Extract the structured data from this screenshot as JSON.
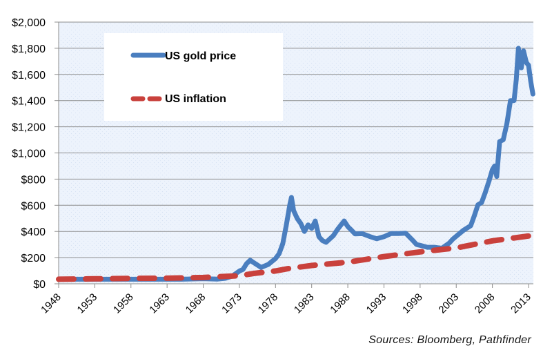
{
  "chart_data": {
    "type": "line",
    "title": "",
    "xlabel": "",
    "ylabel": "",
    "ylim": [
      0,
      2000
    ],
    "xlim": [
      1948,
      2014
    ],
    "y_ticks": [
      "$0",
      "$200",
      "$400",
      "$600",
      "$800",
      "$1,000",
      "$1,200",
      "$1,400",
      "$1,600",
      "$1,800",
      "$2,000"
    ],
    "y_tick_values": [
      0,
      200,
      400,
      600,
      800,
      1000,
      1200,
      1400,
      1600,
      1800,
      2000
    ],
    "x_ticks": [
      "1948",
      "1953",
      "1958",
      "1963",
      "1968",
      "1973",
      "1978",
      "1983",
      "1988",
      "1993",
      "1998",
      "2003",
      "2008",
      "2013"
    ],
    "x_tick_values": [
      1948,
      1953,
      1958,
      1963,
      1968,
      1973,
      1978,
      1983,
      1988,
      1993,
      1998,
      2003,
      2008,
      2013
    ],
    "grid": true,
    "legend_position": "top-left",
    "series": [
      {
        "name": "US gold price",
        "color": "#4a7ebf",
        "style": "solid",
        "x": [
          1948,
          1950,
          1955,
          1960,
          1965,
          1968,
          1970,
          1971,
          1972,
          1973,
          1973.5,
          1974,
          1974.5,
          1975,
          1976,
          1977,
          1978,
          1978.5,
          1979,
          1979.5,
          1980,
          1980.2,
          1980.5,
          1981,
          1981.5,
          1982,
          1982.5,
          1983,
          1983.5,
          1984,
          1984.5,
          1985,
          1986,
          1986.5,
          1987,
          1987.5,
          1988,
          1988.5,
          1989,
          1990,
          1991,
          1992,
          1993,
          1994,
          1995,
          1996,
          1997,
          1997.5,
          1998,
          1999,
          2000,
          2001,
          2002,
          2002.5,
          2003,
          2004,
          2005,
          2005.5,
          2006,
          2006.5,
          2007,
          2007.5,
          2008,
          2008.3,
          2008.6,
          2009,
          2009.5,
          2010,
          2010.5,
          2011,
          2011.3,
          2011.6,
          2012,
          2012.3,
          2012.7,
          2013,
          2013.3,
          2013.6
        ],
        "y": [
          35,
          35,
          35,
          35,
          35,
          39,
          36,
          41,
          58,
          97,
          110,
          154,
          180,
          161,
          125,
          148,
          193,
          230,
          306,
          450,
          612,
          660,
          560,
          500,
          460,
          400,
          450,
          424,
          480,
          360,
          330,
          317,
          368,
          410,
          446,
          480,
          437,
          410,
          381,
          383,
          362,
          344,
          360,
          384,
          384,
          387,
          331,
          300,
          294,
          279,
          279,
          271,
          310,
          340,
          363,
          409,
          444,
          520,
          604,
          620,
          695,
          780,
          872,
          900,
          820,
          1087,
          1100,
          1224,
          1400,
          1400,
          1560,
          1800,
          1650,
          1780,
          1690,
          1670,
          1550,
          1450
        ]
      },
      {
        "name": "US inflation",
        "color": "#c9413c",
        "style": "dashed",
        "x": [
          1948,
          1953,
          1958,
          1963,
          1968,
          1970,
          1973,
          1975,
          1978,
          1980,
          1983,
          1988,
          1993,
          1998,
          2003,
          2008,
          2013
        ],
        "y": [
          35,
          38,
          41,
          43,
          48,
          54,
          62,
          79,
          98,
          118,
          140,
          165,
          208,
          244,
          274,
          328,
          365
        ]
      }
    ],
    "annotations": [
      "Sources:  Bloomberg, Pathfinder"
    ]
  }
}
